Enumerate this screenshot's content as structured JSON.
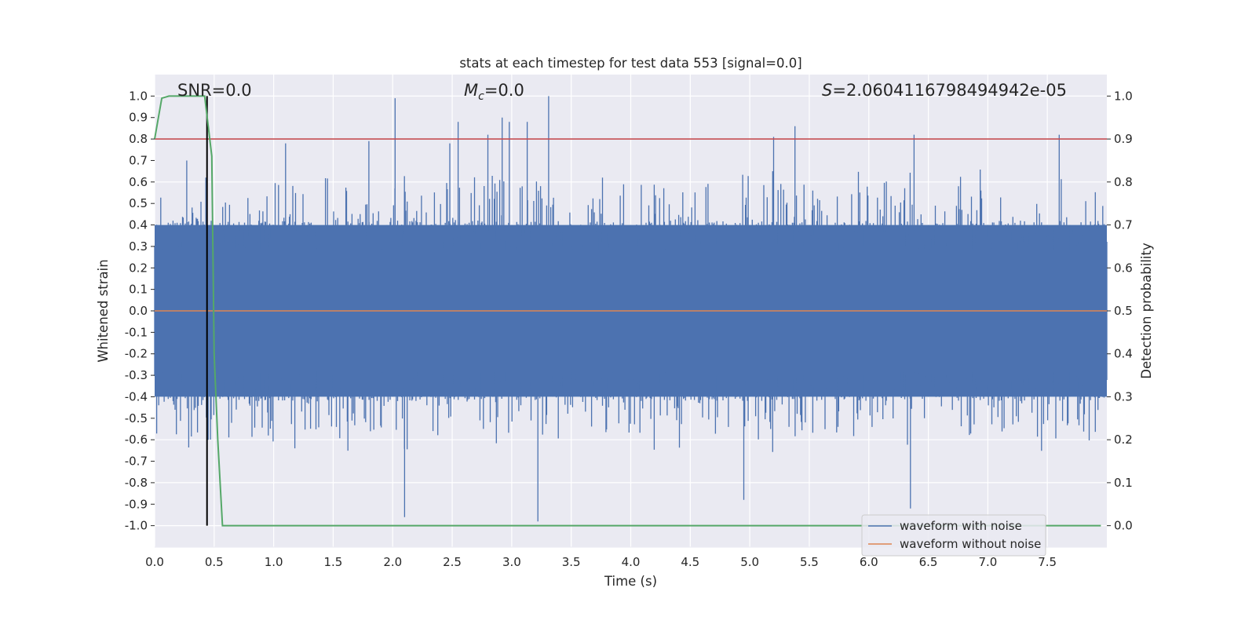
{
  "chart_data": {
    "type": "line",
    "title": "stats at each timestep for test data 553 [signal=0.0]",
    "xlabel": "Time (s)",
    "ylabel": "Whitened strain",
    "y2label": "Detection probability",
    "xlim": [
      0.0,
      8.0
    ],
    "ylim": [
      -1.1,
      1.1
    ],
    "y2lim": [
      -0.05,
      1.05
    ],
    "xticks": [
      "0.0",
      "0.5",
      "1.0",
      "1.5",
      "2.0",
      "2.5",
      "3.0",
      "3.5",
      "4.0",
      "4.5",
      "5.0",
      "5.5",
      "6.0",
      "6.5",
      "7.0",
      "7.5"
    ],
    "yticks": [
      "1.0",
      "0.9",
      "0.8",
      "0.7",
      "0.6",
      "0.5",
      "0.4",
      "0.3",
      "0.2",
      "0.1",
      "0.0",
      "-0.1",
      "-0.2",
      "-0.3",
      "-0.4",
      "-0.5",
      "-0.6",
      "-0.7",
      "-0.8",
      "-0.9",
      "-1.0"
    ],
    "y2ticks": [
      "1.0",
      "0.9",
      "0.8",
      "0.7",
      "0.6",
      "0.5",
      "0.4",
      "0.3",
      "0.2",
      "0.1",
      "0.0"
    ],
    "annotations": {
      "snr": "SNR=0.0",
      "mc_symbol": "M",
      "mc_sub": "c",
      "mc_value": "=0.0",
      "s_symbol": "S",
      "s_value": "=2.0604116798494942e-05"
    },
    "series": [
      {
        "name": "waveform with noise",
        "color": "#4c72b0",
        "axis": "left",
        "description": "dense noise, typically within ±0.45, peaks ±1.0",
        "peaks": [
          {
            "x": 0.27,
            "y": 0.7
          },
          {
            "x": 0.43,
            "y": 0.62
          },
          {
            "x": 0.45,
            "y": -0.6
          },
          {
            "x": 1.1,
            "y": 0.78
          },
          {
            "x": 1.8,
            "y": 0.79
          },
          {
            "x": 2.02,
            "y": 0.99
          },
          {
            "x": 2.1,
            "y": -0.96
          },
          {
            "x": 2.48,
            "y": 0.78
          },
          {
            "x": 2.55,
            "y": 0.88
          },
          {
            "x": 2.8,
            "y": 0.82
          },
          {
            "x": 2.92,
            "y": 0.9
          },
          {
            "x": 2.98,
            "y": 0.88
          },
          {
            "x": 3.13,
            "y": 0.88
          },
          {
            "x": 3.22,
            "y": -0.98
          },
          {
            "x": 3.31,
            "y": 1.0
          },
          {
            "x": 4.95,
            "y": -0.88
          },
          {
            "x": 5.2,
            "y": 0.81
          },
          {
            "x": 5.38,
            "y": 0.86
          },
          {
            "x": 6.35,
            "y": -0.92
          },
          {
            "x": 6.38,
            "y": 0.82
          },
          {
            "x": 7.6,
            "y": 0.82
          }
        ]
      },
      {
        "name": "waveform without noise",
        "color": "#dd8452",
        "axis": "left",
        "values_y": 0.0
      },
      {
        "name": "detection probability",
        "color": "#55a868",
        "axis": "right",
        "x": [
          0.0,
          0.06,
          0.12,
          0.18,
          0.24,
          0.3,
          0.36,
          0.42,
          0.48,
          0.5,
          0.53,
          0.57,
          8.0
        ],
        "y": [
          0.9,
          0.995,
          1.0,
          1.0,
          1.0,
          1.0,
          1.0,
          1.0,
          0.86,
          0.4,
          0.2,
          0.0,
          0.0
        ]
      },
      {
        "name": "threshold",
        "color": "#c44e52",
        "axis": "right",
        "values_y": 0.9
      },
      {
        "name": "time marker",
        "color": "#000000",
        "axis": "left",
        "x": 0.44,
        "y_range": [
          -1.0,
          1.0
        ]
      }
    ],
    "legend": {
      "position": "bottom-right",
      "entries": [
        {
          "label": "waveform with noise",
          "color": "#4c72b0"
        },
        {
          "label": "waveform without noise",
          "color": "#dd8452"
        }
      ]
    },
    "grid": true
  }
}
